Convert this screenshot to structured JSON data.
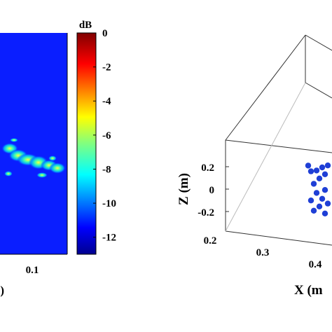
{
  "chart_data": [
    {
      "type": "heatmap",
      "colormap": "jet",
      "colorbar_title": "dB",
      "colorbar_range": [
        -13,
        0
      ],
      "colorbar_ticks": [
        "0",
        "-2",
        "-4",
        "-6",
        "-8",
        "-10",
        "-12"
      ],
      "colorbar_tick_values": [
        0,
        -2,
        -4,
        -6,
        -8,
        -10,
        -12
      ],
      "x_tick": "0.1",
      "xlabel_fragment": "n)"
    },
    {
      "type": "scatter",
      "projection": "3d",
      "zlabel": "Z (m)",
      "xlabel_fragment": "X (m",
      "z_ticks": [
        "0.2",
        "0",
        "-0.2"
      ],
      "z_tick_values": [
        0.2,
        0,
        -0.2
      ],
      "x_ticks": [
        "0.2",
        "0.3",
        "0.4"
      ],
      "x_tick_values": [
        0.2,
        0.3,
        0.4
      ],
      "point_color": "#1f3fd6",
      "points": [
        {
          "x": 0.47,
          "z": 0.22
        },
        {
          "x": 0.45,
          "z": 0.2
        },
        {
          "x": 0.49,
          "z": 0.19
        },
        {
          "x": 0.43,
          "z": 0.17
        },
        {
          "x": 0.41,
          "z": 0.16
        },
        {
          "x": 0.46,
          "z": 0.14
        },
        {
          "x": 0.5,
          "z": 0.13
        },
        {
          "x": 0.44,
          "z": 0.1
        },
        {
          "x": 0.48,
          "z": 0.08
        },
        {
          "x": 0.42,
          "z": 0.05
        },
        {
          "x": 0.5,
          "z": 0.03
        },
        {
          "x": 0.46,
          "z": 0.0
        },
        {
          "x": 0.43,
          "z": -0.03
        },
        {
          "x": 0.49,
          "z": -0.05
        },
        {
          "x": 0.45,
          "z": -0.08
        },
        {
          "x": 0.41,
          "z": -0.1
        },
        {
          "x": 0.47,
          "z": -0.12
        },
        {
          "x": 0.44,
          "z": -0.15
        },
        {
          "x": 0.5,
          "z": -0.17
        },
        {
          "x": 0.42,
          "z": -0.19
        },
        {
          "x": 0.46,
          "z": -0.21
        },
        {
          "x": 0.48,
          "z": 0.24
        },
        {
          "x": 0.4,
          "z": 0.21
        },
        {
          "x": 0.51,
          "z": -0.02
        }
      ]
    }
  ]
}
